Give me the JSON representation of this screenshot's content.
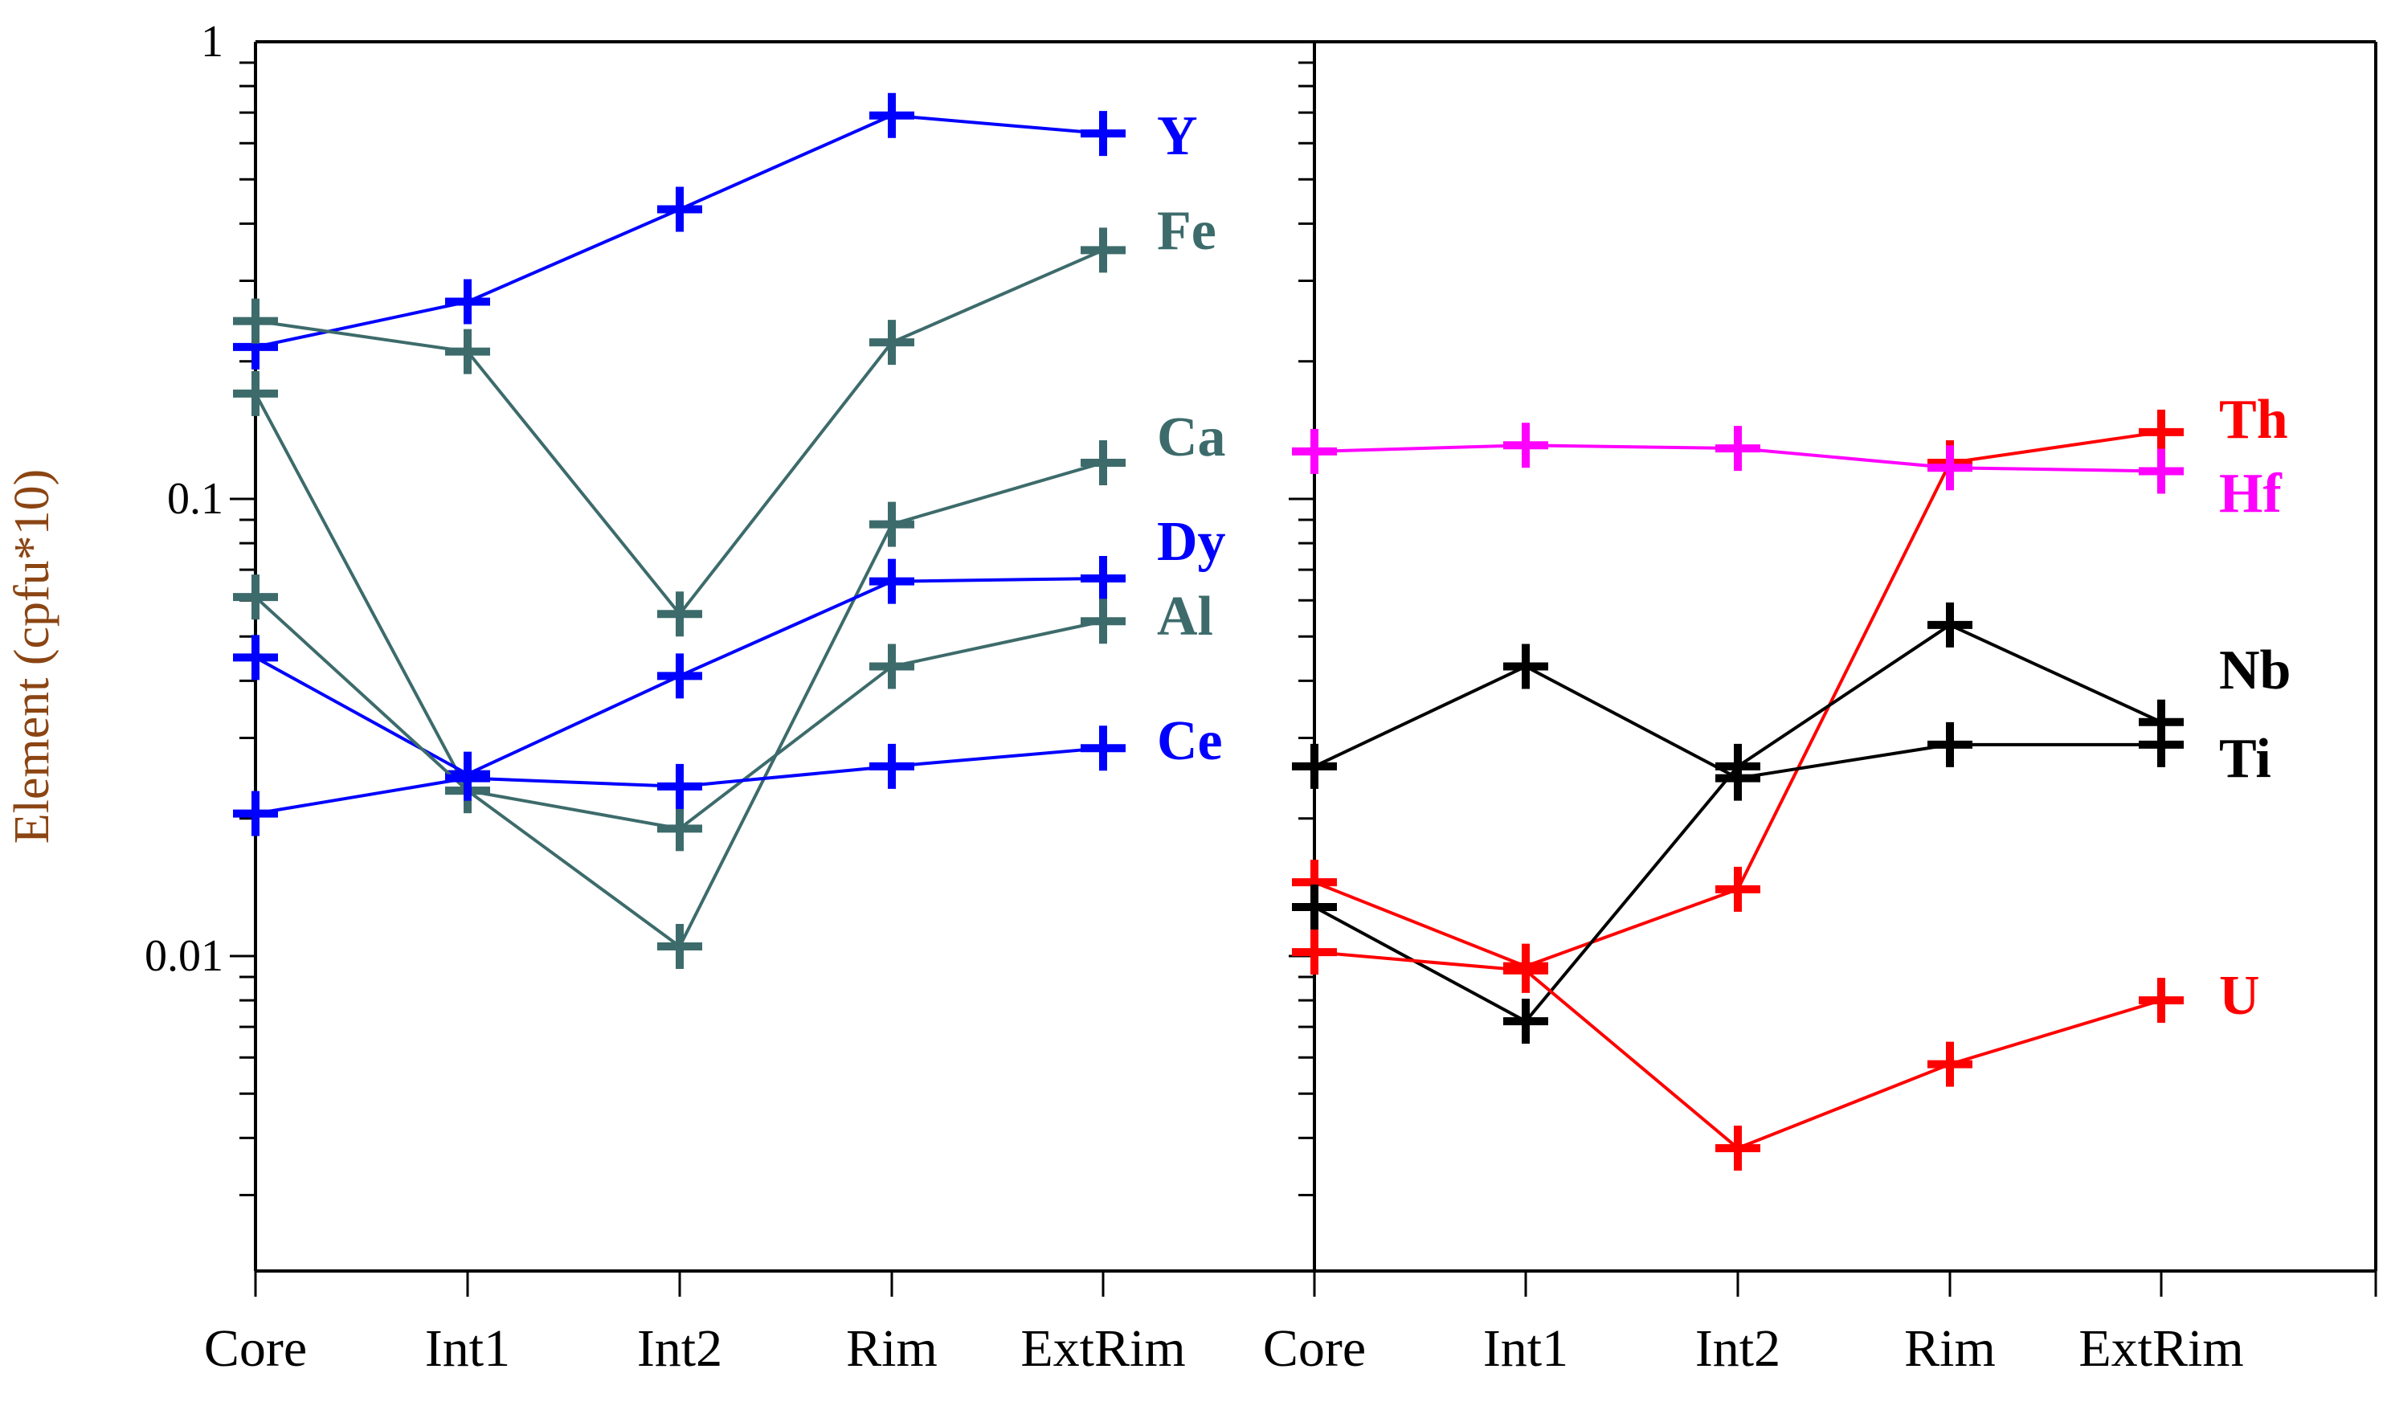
{
  "chart_data": {
    "type": "line",
    "ylabel": "Element (cpfu*10)",
    "yscale": "log",
    "ylim": [
      0.002,
      1
    ],
    "ytick_labels": [
      "1",
      "0.1",
      "0.01"
    ],
    "panels": [
      {
        "name": "left",
        "categories": [
          "Core",
          "Int1",
          "Int2",
          "Rim",
          "ExtRim"
        ],
        "series": [
          {
            "name": "Y",
            "color": "#0000ff",
            "values": [
              0.215,
              0.27,
              0.43,
              0.69,
              0.63
            ]
          },
          {
            "name": "Fe",
            "color": "#3d6b6b",
            "values": [
              0.245,
              0.21,
              0.056,
              0.22,
              0.35
            ]
          },
          {
            "name": "Ca",
            "color": "#3d6b6b",
            "values": [
              0.17,
              0.023,
              0.0105,
              0.088,
              0.12
            ]
          },
          {
            "name": "Dy",
            "color": "#0000ff",
            "values": [
              0.045,
              0.025,
              0.041,
              0.066,
              0.067
            ]
          },
          {
            "name": "Al",
            "color": "#3d6b6b",
            "values": [
              0.061,
              0.023,
              0.019,
              0.043,
              0.054
            ]
          },
          {
            "name": "Ce",
            "color": "#0000ff",
            "values": [
              0.0205,
              0.0245,
              0.0235,
              0.026,
              0.0285
            ]
          }
        ]
      },
      {
        "name": "right",
        "categories": [
          "Core",
          "Int1",
          "Int2",
          "Rim",
          "ExtRim"
        ],
        "series": [
          {
            "name": "Th",
            "color": "#ff0000",
            "values": [
              0.0145,
              0.0095,
              0.014,
              0.12,
              0.14
            ]
          },
          {
            "name": "Hf",
            "color": "#ff00ff",
            "values": [
              0.127,
              0.131,
              0.129,
              0.117,
              0.115
            ]
          },
          {
            "name": "Nb",
            "color": "#000000",
            "values": [
              0.0128,
              0.0072,
              0.026,
              0.053,
              0.0325
            ]
          },
          {
            "name": "Ti",
            "color": "#000000",
            "values": [
              0.026,
              0.043,
              0.0245,
              0.029,
              0.029
            ]
          },
          {
            "name": "U",
            "color": "#ff0000",
            "values": [
              0.0102,
              0.0093,
              0.0038,
              0.0058,
              0.008
            ]
          }
        ]
      }
    ]
  }
}
